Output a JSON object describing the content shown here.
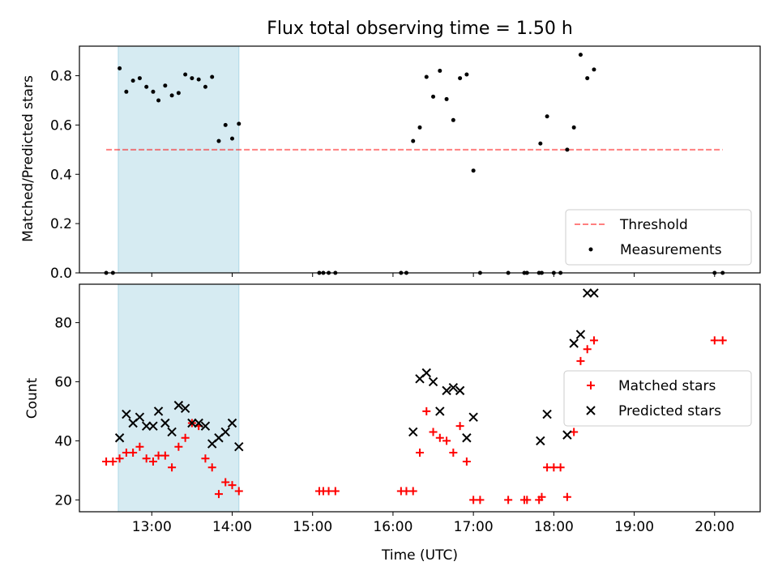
{
  "chart_data": [
    {
      "type": "scatter",
      "title": "Flux total observing time = 1.50 h",
      "xlabel": "",
      "ylabel": "Matched/Predicted stars",
      "x_unit": "hours (UTC)",
      "xlim": [
        "12:06",
        "20:34"
      ],
      "ylim": [
        0,
        0.92
      ],
      "yticks": [
        "0.0",
        "0.2",
        "0.4",
        "0.6",
        "0.8"
      ],
      "highlight_span": {
        "start": "12:35",
        "end": "14:05",
        "color": "#add8e6"
      },
      "threshold": {
        "name": "Threshold",
        "y": 0.5,
        "x_start": "12:26",
        "x_end": "20:06",
        "color": "#ff0000",
        "style": "dashed"
      },
      "series": [
        {
          "name": "Measurements",
          "marker": "dot",
          "color": "#000000",
          "points": [
            [
              "12:26",
              0
            ],
            [
              "12:31",
              0
            ],
            [
              "12:36",
              0.83
            ],
            [
              "12:41",
              0.735
            ],
            [
              "12:46",
              0.78
            ],
            [
              "12:51",
              0.79
            ],
            [
              "12:56",
              0.755
            ],
            [
              "13:01",
              0.735
            ],
            [
              "13:05",
              0.7
            ],
            [
              "13:10",
              0.76
            ],
            [
              "13:15",
              0.72
            ],
            [
              "13:20",
              0.73
            ],
            [
              "13:25",
              0.805
            ],
            [
              "13:30",
              0.79
            ],
            [
              "13:35",
              0.785
            ],
            [
              "13:40",
              0.755
            ],
            [
              "13:45",
              0.795
            ],
            [
              "13:50",
              0.535
            ],
            [
              "13:55",
              0.6
            ],
            [
              "14:00",
              0.545
            ],
            [
              "14:05",
              0.605
            ],
            [
              "15:05",
              0
            ],
            [
              "15:08",
              0
            ],
            [
              "15:12",
              0
            ],
            [
              "15:17",
              0
            ],
            [
              "16:06",
              0
            ],
            [
              "16:10",
              0
            ],
            [
              "16:15",
              0.535
            ],
            [
              "16:20",
              0.59
            ],
            [
              "16:25",
              0.795
            ],
            [
              "16:30",
              0.715
            ],
            [
              "16:35",
              0.82
            ],
            [
              "16:40",
              0.705
            ],
            [
              "16:45",
              0.62
            ],
            [
              "16:50",
              0.79
            ],
            [
              "16:55",
              0.805
            ],
            [
              "17:00",
              0.415
            ],
            [
              "17:05",
              0
            ],
            [
              "17:26",
              0
            ],
            [
              "17:38",
              0
            ],
            [
              "17:40",
              0
            ],
            [
              "17:49",
              0
            ],
            [
              "17:51",
              0
            ],
            [
              "17:50",
              0.525
            ],
            [
              "17:55",
              0.635
            ],
            [
              "18:00",
              0
            ],
            [
              "18:05",
              0
            ],
            [
              "18:10",
              0.5
            ],
            [
              "18:15",
              0.59
            ],
            [
              "18:20",
              0.885
            ],
            [
              "18:25",
              0.79
            ],
            [
              "18:30",
              0.825
            ],
            [
              "20:00",
              0
            ],
            [
              "20:06",
              0
            ]
          ]
        }
      ],
      "legend": {
        "position": "lower right",
        "entries": [
          "Threshold",
          "Measurements"
        ]
      }
    },
    {
      "type": "scatter",
      "title": "",
      "xlabel": "Time (UTC)",
      "ylabel": "Count",
      "x_unit": "hours (UTC)",
      "xlim": [
        "12:06",
        "20:34"
      ],
      "ylim": [
        16,
        93
      ],
      "yticks": [
        "20",
        "40",
        "60",
        "80"
      ],
      "xticks": [
        "13:00",
        "14:00",
        "15:00",
        "16:00",
        "17:00",
        "18:00",
        "19:00",
        "20:00"
      ],
      "highlight_span": {
        "start": "12:35",
        "end": "14:05",
        "color": "#add8e6"
      },
      "series": [
        {
          "name": "Matched stars",
          "marker": "plus",
          "color": "#ff0000",
          "points": [
            [
              "12:26",
              33
            ],
            [
              "12:31",
              33
            ],
            [
              "12:36",
              34
            ],
            [
              "12:41",
              36
            ],
            [
              "12:46",
              36
            ],
            [
              "12:51",
              38
            ],
            [
              "12:56",
              34
            ],
            [
              "13:01",
              33
            ],
            [
              "13:05",
              35
            ],
            [
              "13:10",
              35
            ],
            [
              "13:15",
              31
            ],
            [
              "13:20",
              38
            ],
            [
              "13:25",
              41
            ],
            [
              "13:30",
              46
            ],
            [
              "13:35",
              45
            ],
            [
              "13:40",
              34
            ],
            [
              "13:45",
              31
            ],
            [
              "13:50",
              22
            ],
            [
              "13:55",
              26
            ],
            [
              "14:00",
              25
            ],
            [
              "14:05",
              23
            ],
            [
              "15:05",
              23
            ],
            [
              "15:08",
              23
            ],
            [
              "15:12",
              23
            ],
            [
              "15:17",
              23
            ],
            [
              "16:06",
              23
            ],
            [
              "16:10",
              23
            ],
            [
              "16:15",
              23
            ],
            [
              "16:20",
              36
            ],
            [
              "16:25",
              50
            ],
            [
              "16:30",
              43
            ],
            [
              "16:35",
              41
            ],
            [
              "16:40",
              40
            ],
            [
              "16:45",
              36
            ],
            [
              "16:50",
              45
            ],
            [
              "16:55",
              33
            ],
            [
              "17:00",
              20
            ],
            [
              "17:05",
              20
            ],
            [
              "17:26",
              20
            ],
            [
              "17:38",
              20
            ],
            [
              "17:40",
              20
            ],
            [
              "17:49",
              20
            ],
            [
              "17:51",
              21
            ],
            [
              "17:55",
              31
            ],
            [
              "18:00",
              31
            ],
            [
              "18:05",
              31
            ],
            [
              "18:10",
              21
            ],
            [
              "18:15",
              43
            ],
            [
              "18:20",
              67
            ],
            [
              "18:25",
              71
            ],
            [
              "18:30",
              74
            ],
            [
              "20:00",
              74
            ],
            [
              "20:06",
              74
            ]
          ]
        },
        {
          "name": "Predicted stars",
          "marker": "x",
          "color": "#000000",
          "points": [
            [
              "12:36",
              41
            ],
            [
              "12:41",
              49
            ],
            [
              "12:46",
              46
            ],
            [
              "12:51",
              48
            ],
            [
              "12:56",
              45
            ],
            [
              "13:01",
              45
            ],
            [
              "13:05",
              50
            ],
            [
              "13:10",
              46
            ],
            [
              "13:15",
              43
            ],
            [
              "13:20",
              52
            ],
            [
              "13:25",
              51
            ],
            [
              "13:30",
              46
            ],
            [
              "13:35",
              46
            ],
            [
              "13:40",
              45
            ],
            [
              "13:45",
              39
            ],
            [
              "13:50",
              41
            ],
            [
              "13:55",
              43
            ],
            [
              "14:00",
              46
            ],
            [
              "14:05",
              38
            ],
            [
              "16:15",
              43
            ],
            [
              "16:20",
              61
            ],
            [
              "16:25",
              63
            ],
            [
              "16:30",
              60
            ],
            [
              "16:35",
              50
            ],
            [
              "16:40",
              57
            ],
            [
              "16:45",
              58
            ],
            [
              "16:50",
              57
            ],
            [
              "16:55",
              41
            ],
            [
              "17:00",
              48
            ],
            [
              "17:50",
              40
            ],
            [
              "17:55",
              49
            ],
            [
              "18:10",
              42
            ],
            [
              "18:15",
              73
            ],
            [
              "18:20",
              76
            ],
            [
              "18:25",
              90
            ],
            [
              "18:30",
              90
            ]
          ]
        }
      ],
      "legend": {
        "position": "center right",
        "entries": [
          "Matched stars",
          "Predicted stars"
        ]
      }
    }
  ]
}
